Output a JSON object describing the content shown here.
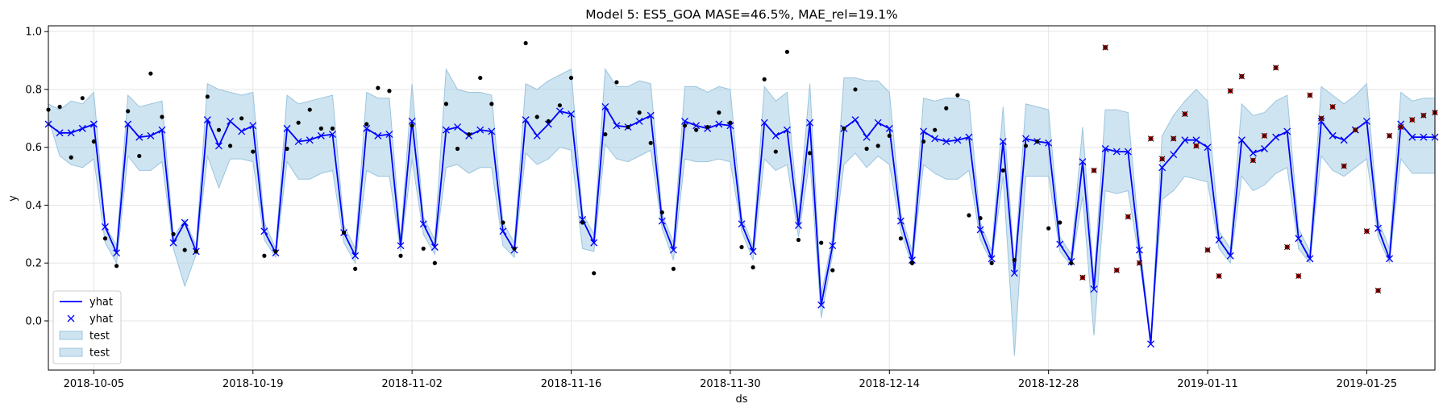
{
  "chart_data": {
    "type": "line",
    "title": "Model 5: ES5_GOA MASE=46.5%, MAE_rel=19.1%",
    "xlabel": "ds",
    "ylabel": "y",
    "xlim": [
      "2018-10-01",
      "2019-01-31"
    ],
    "ylim": [
      -0.17,
      1.02
    ],
    "grid": true,
    "legend_placement": "lower-left",
    "x_ticks": [
      "2018-10-05",
      "2018-10-19",
      "2018-11-02",
      "2018-11-16",
      "2018-11-30",
      "2018-12-14",
      "2018-12-28",
      "2019-01-11",
      "2019-01-25"
    ],
    "y_ticks": [
      "0.0",
      "0.2",
      "0.4",
      "0.6",
      "0.8",
      "1.0"
    ],
    "legend": [
      {
        "label": "yhat",
        "kind": "line"
      },
      {
        "label": "yhat",
        "kind": "marker"
      },
      {
        "label": "test",
        "kind": "band"
      },
      {
        "label": "test",
        "kind": "band"
      }
    ],
    "colors": {
      "forecast": "#0000ff",
      "band_fill": "#a6cde3",
      "band_edge": "#9cc5df",
      "observed": "#000000",
      "test_actual": "#c00000",
      "grid": "#e5e5e5"
    },
    "series": [
      {
        "name": "yhat",
        "x": [
          "2018-10-01",
          "2018-10-02",
          "2018-10-03",
          "2018-10-04",
          "2018-10-05",
          "2018-10-06",
          "2018-10-07",
          "2018-10-08",
          "2018-10-09",
          "2018-10-10",
          "2018-10-11",
          "2018-10-12",
          "2018-10-13",
          "2018-10-14",
          "2018-10-15",
          "2018-10-16",
          "2018-10-17",
          "2018-10-18",
          "2018-10-19",
          "2018-10-20",
          "2018-10-21",
          "2018-10-22",
          "2018-10-23",
          "2018-10-24",
          "2018-10-25",
          "2018-10-26",
          "2018-10-27",
          "2018-10-28",
          "2018-10-29",
          "2018-10-30",
          "2018-10-31",
          "2018-11-01",
          "2018-11-02",
          "2018-11-03",
          "2018-11-04",
          "2018-11-05",
          "2018-11-06",
          "2018-11-07",
          "2018-11-08",
          "2018-11-09",
          "2018-11-10",
          "2018-11-11",
          "2018-11-12",
          "2018-11-13",
          "2018-11-14",
          "2018-11-15",
          "2018-11-16",
          "2018-11-17",
          "2018-11-18",
          "2018-11-19",
          "2018-11-20",
          "2018-11-21",
          "2018-11-22",
          "2018-11-23",
          "2018-11-24",
          "2018-11-25",
          "2018-11-26",
          "2018-11-27",
          "2018-11-28",
          "2018-11-29",
          "2018-11-30",
          "2018-12-01",
          "2018-12-02",
          "2018-12-03",
          "2018-12-04",
          "2018-12-05",
          "2018-12-06",
          "2018-12-07",
          "2018-12-08",
          "2018-12-09",
          "2018-12-10",
          "2018-12-11",
          "2018-12-12",
          "2018-12-13",
          "2018-12-14",
          "2018-12-15",
          "2018-12-16",
          "2018-12-17",
          "2018-12-18",
          "2018-12-19",
          "2018-12-20",
          "2018-12-21",
          "2018-12-22",
          "2018-12-23",
          "2018-12-24",
          "2018-12-25",
          "2018-12-26",
          "2018-12-27",
          "2018-12-28",
          "2018-12-29",
          "2018-12-30",
          "2018-12-31",
          "2019-01-01",
          "2019-01-02",
          "2019-01-03",
          "2019-01-04",
          "2019-01-05",
          "2019-01-06",
          "2019-01-07",
          "2019-01-08",
          "2019-01-09",
          "2019-01-10",
          "2019-01-11",
          "2019-01-12",
          "2019-01-13",
          "2019-01-14",
          "2019-01-15",
          "2019-01-16",
          "2019-01-17",
          "2019-01-18",
          "2019-01-19",
          "2019-01-20",
          "2019-01-21",
          "2019-01-22",
          "2019-01-23",
          "2019-01-24",
          "2019-01-25",
          "2019-01-26",
          "2019-01-27",
          "2019-01-28",
          "2019-01-29",
          "2019-01-30",
          "2019-01-31"
        ],
        "y": [
          0.68,
          0.65,
          0.65,
          0.665,
          0.68,
          0.325,
          0.235,
          0.68,
          0.635,
          0.64,
          0.66,
          0.27,
          0.34,
          0.24,
          0.695,
          0.605,
          0.69,
          0.655,
          0.675,
          0.31,
          0.235,
          0.665,
          0.62,
          0.625,
          0.64,
          0.645,
          0.305,
          0.225,
          0.665,
          0.64,
          0.645,
          0.26,
          0.69,
          0.335,
          0.255,
          0.66,
          0.67,
          0.64,
          0.66,
          0.655,
          0.31,
          0.245,
          0.695,
          0.64,
          0.68,
          0.725,
          0.715,
          0.35,
          0.27,
          0.74,
          0.675,
          0.67,
          0.69,
          0.71,
          0.345,
          0.245,
          0.69,
          0.675,
          0.665,
          0.68,
          0.675,
          0.335,
          0.24,
          0.685,
          0.64,
          0.66,
          0.33,
          0.685,
          0.055,
          0.26,
          0.665,
          0.695,
          0.635,
          0.685,
          0.665,
          0.345,
          0.21,
          0.655,
          0.63,
          0.62,
          0.625,
          0.635,
          0.315,
          0.215,
          0.62,
          0.165,
          0.63,
          0.62,
          0.615,
          0.265,
          0.205,
          0.55,
          0.11,
          0.595,
          0.585,
          0.585,
          0.245,
          -0.08,
          0.53,
          0.575,
          0.625,
          0.625,
          0.6,
          0.28,
          0.225,
          0.625,
          0.58,
          0.595,
          0.635,
          0.655,
          0.285,
          0.215,
          0.69,
          0.64,
          0.625,
          0.66,
          0.69,
          0.32,
          0.215,
          0.68,
          0.635,
          0.635,
          0.635
        ]
      },
      {
        "name": "test",
        "lower": [
          0.7,
          0.57,
          0.54,
          0.53,
          0.56,
          0.27,
          0.2,
          0.57,
          0.52,
          0.52,
          0.55,
          0.25,
          0.12,
          0.23,
          0.57,
          0.46,
          0.56,
          0.56,
          0.55,
          0.28,
          0.22,
          0.55,
          0.49,
          0.49,
          0.51,
          0.52,
          0.27,
          0.2,
          0.52,
          0.5,
          0.5,
          0.24,
          0.56,
          0.3,
          0.23,
          0.53,
          0.54,
          0.51,
          0.53,
          0.53,
          0.26,
          0.22,
          0.58,
          0.54,
          0.56,
          0.6,
          0.59,
          0.25,
          0.24,
          0.61,
          0.56,
          0.55,
          0.57,
          0.59,
          0.32,
          0.21,
          0.56,
          0.55,
          0.55,
          0.56,
          0.55,
          0.31,
          0.21,
          0.56,
          0.52,
          0.54,
          0.29,
          0.56,
          0.01,
          0.23,
          0.54,
          0.58,
          0.53,
          0.57,
          0.54,
          0.31,
          0.19,
          0.54,
          0.51,
          0.49,
          0.49,
          0.52,
          0.28,
          0.2,
          0.5,
          -0.12,
          0.5,
          0.5,
          0.5,
          0.24,
          0.19,
          0.43,
          -0.05,
          0.45,
          0.44,
          0.45,
          0.21,
          -0.07,
          0.42,
          0.45,
          0.5,
          0.49,
          0.48,
          0.25,
          0.2,
          0.5,
          0.45,
          0.47,
          0.51,
          0.53,
          0.25,
          0.2,
          0.57,
          0.52,
          0.5,
          0.53,
          0.56,
          0.29,
          0.2,
          0.56,
          0.51,
          0.51,
          0.51
        ],
        "upper": [
          0.75,
          0.73,
          0.76,
          0.75,
          0.79,
          0.33,
          0.26,
          0.78,
          0.74,
          0.75,
          0.76,
          0.29,
          0.35,
          0.26,
          0.82,
          0.8,
          0.79,
          0.78,
          0.79,
          0.34,
          0.25,
          0.78,
          0.75,
          0.76,
          0.77,
          0.78,
          0.33,
          0.25,
          0.79,
          0.77,
          0.77,
          0.28,
          0.82,
          0.36,
          0.28,
          0.87,
          0.8,
          0.79,
          0.79,
          0.78,
          0.34,
          0.27,
          0.82,
          0.8,
          0.83,
          0.85,
          0.87,
          0.37,
          0.3,
          0.87,
          0.81,
          0.81,
          0.83,
          0.82,
          0.37,
          0.27,
          0.81,
          0.81,
          0.79,
          0.81,
          0.8,
          0.36,
          0.26,
          0.81,
          0.76,
          0.79,
          0.36,
          0.82,
          0.09,
          0.29,
          0.84,
          0.84,
          0.83,
          0.83,
          0.79,
          0.37,
          0.24,
          0.77,
          0.76,
          0.77,
          0.77,
          0.76,
          0.34,
          0.24,
          0.74,
          0.19,
          0.75,
          0.74,
          0.73,
          0.29,
          0.23,
          0.67,
          0.14,
          0.73,
          0.73,
          0.72,
          0.28,
          -0.06,
          0.64,
          0.71,
          0.76,
          0.8,
          0.76,
          0.31,
          0.25,
          0.75,
          0.71,
          0.72,
          0.76,
          0.78,
          0.32,
          0.24,
          0.81,
          0.78,
          0.75,
          0.78,
          0.82,
          0.35,
          0.25,
          0.79,
          0.76,
          0.77,
          0.77
        ]
      },
      {
        "name": "observed",
        "x": [
          "2018-10-01",
          "2018-10-02",
          "2018-10-03",
          "2018-10-04",
          "2018-10-05",
          "2018-10-06",
          "2018-10-07",
          "2018-10-08",
          "2018-10-09",
          "2018-10-10",
          "2018-10-11",
          "2018-10-12",
          "2018-10-13",
          "2018-10-14",
          "2018-10-15",
          "2018-10-16",
          "2018-10-17",
          "2018-10-18",
          "2018-10-19",
          "2018-10-20",
          "2018-10-21",
          "2018-10-22",
          "2018-10-23",
          "2018-10-24",
          "2018-10-25",
          "2018-10-26",
          "2018-10-27",
          "2018-10-28",
          "2018-10-29",
          "2018-10-30",
          "2018-10-31",
          "2018-11-01",
          "2018-11-02",
          "2018-11-03",
          "2018-11-04",
          "2018-11-05",
          "2018-11-06",
          "2018-11-07",
          "2018-11-08",
          "2018-11-09",
          "2018-11-10",
          "2018-11-11",
          "2018-11-12",
          "2018-11-13",
          "2018-11-14",
          "2018-11-15",
          "2018-11-16",
          "2018-11-17",
          "2018-11-18",
          "2018-11-19",
          "2018-11-20",
          "2018-11-21",
          "2018-11-22",
          "2018-11-23",
          "2018-11-24",
          "2018-11-25",
          "2018-11-26",
          "2018-11-27",
          "2018-11-28",
          "2018-11-29",
          "2018-11-30",
          "2018-12-01",
          "2018-12-02",
          "2018-12-03",
          "2018-12-04",
          "2018-12-05",
          "2018-12-06",
          "2018-12-07",
          "2018-12-08",
          "2018-12-09",
          "2018-12-10",
          "2018-12-11",
          "2018-12-12",
          "2018-12-13",
          "2018-12-14",
          "2018-12-15",
          "2018-12-16",
          "2018-12-17",
          "2018-12-18",
          "2018-12-19",
          "2018-12-20",
          "2018-12-21",
          "2018-12-22",
          "2018-12-23",
          "2018-12-24",
          "2018-12-25",
          "2018-12-26",
          "2018-12-27",
          "2018-12-28",
          "2018-12-29",
          "2018-12-30"
        ],
        "y": [
          0.73,
          0.74,
          0.565,
          0.77,
          0.62,
          0.285,
          0.19,
          0.725,
          0.57,
          0.855,
          0.705,
          0.3,
          0.245,
          0.24,
          0.775,
          0.66,
          0.605,
          0.7,
          0.585,
          0.225,
          0.24,
          0.595,
          0.685,
          0.73,
          0.665,
          0.665,
          0.305,
          0.18,
          0.68,
          0.805,
          0.795,
          0.225,
          0.675,
          0.25,
          0.2,
          0.75,
          0.595,
          0.645,
          0.84,
          0.75,
          0.34,
          0.25,
          0.96,
          0.705,
          0.69,
          0.745,
          0.84,
          0.34,
          0.165,
          0.645,
          0.825,
          0.67,
          0.72,
          0.615,
          0.375,
          0.18,
          0.675,
          0.66,
          0.67,
          0.72,
          0.685,
          0.255,
          0.185,
          0.835,
          0.585,
          0.93,
          0.28,
          0.58,
          0.27,
          0.175,
          0.665,
          0.8,
          0.595,
          0.605,
          0.64,
          0.285,
          0.2,
          0.62,
          0.66,
          0.735,
          0.78,
          0.365,
          0.355,
          0.2,
          0.52,
          0.21,
          0.605,
          0.62,
          0.32,
          0.34,
          0.2
        ]
      },
      {
        "name": "test_actual",
        "x": [
          "2018-12-31",
          "2019-01-01",
          "2019-01-02",
          "2019-01-03",
          "2019-01-04",
          "2019-01-05",
          "2019-01-06",
          "2019-01-07",
          "2019-01-08",
          "2019-01-09",
          "2019-01-10",
          "2019-01-11",
          "2019-01-12",
          "2019-01-13",
          "2019-01-14",
          "2019-01-15",
          "2019-01-16",
          "2019-01-17",
          "2019-01-18",
          "2019-01-19",
          "2019-01-20",
          "2019-01-21",
          "2019-01-22",
          "2019-01-23",
          "2019-01-24",
          "2019-01-25",
          "2019-01-26",
          "2019-01-27",
          "2019-01-28",
          "2019-01-29",
          "2019-01-30",
          "2019-01-31"
        ],
        "y": [
          0.15,
          0.52,
          0.945,
          0.175,
          0.36,
          0.2,
          0.63,
          0.56,
          0.63,
          0.715,
          0.605,
          0.245,
          0.155,
          0.795,
          0.845,
          0.555,
          0.64,
          0.875,
          0.255,
          0.155,
          0.78,
          0.7,
          0.74,
          0.535,
          0.66,
          0.31,
          0.105,
          0.64,
          0.67,
          0.695,
          0.71,
          0.72
        ]
      }
    ]
  }
}
